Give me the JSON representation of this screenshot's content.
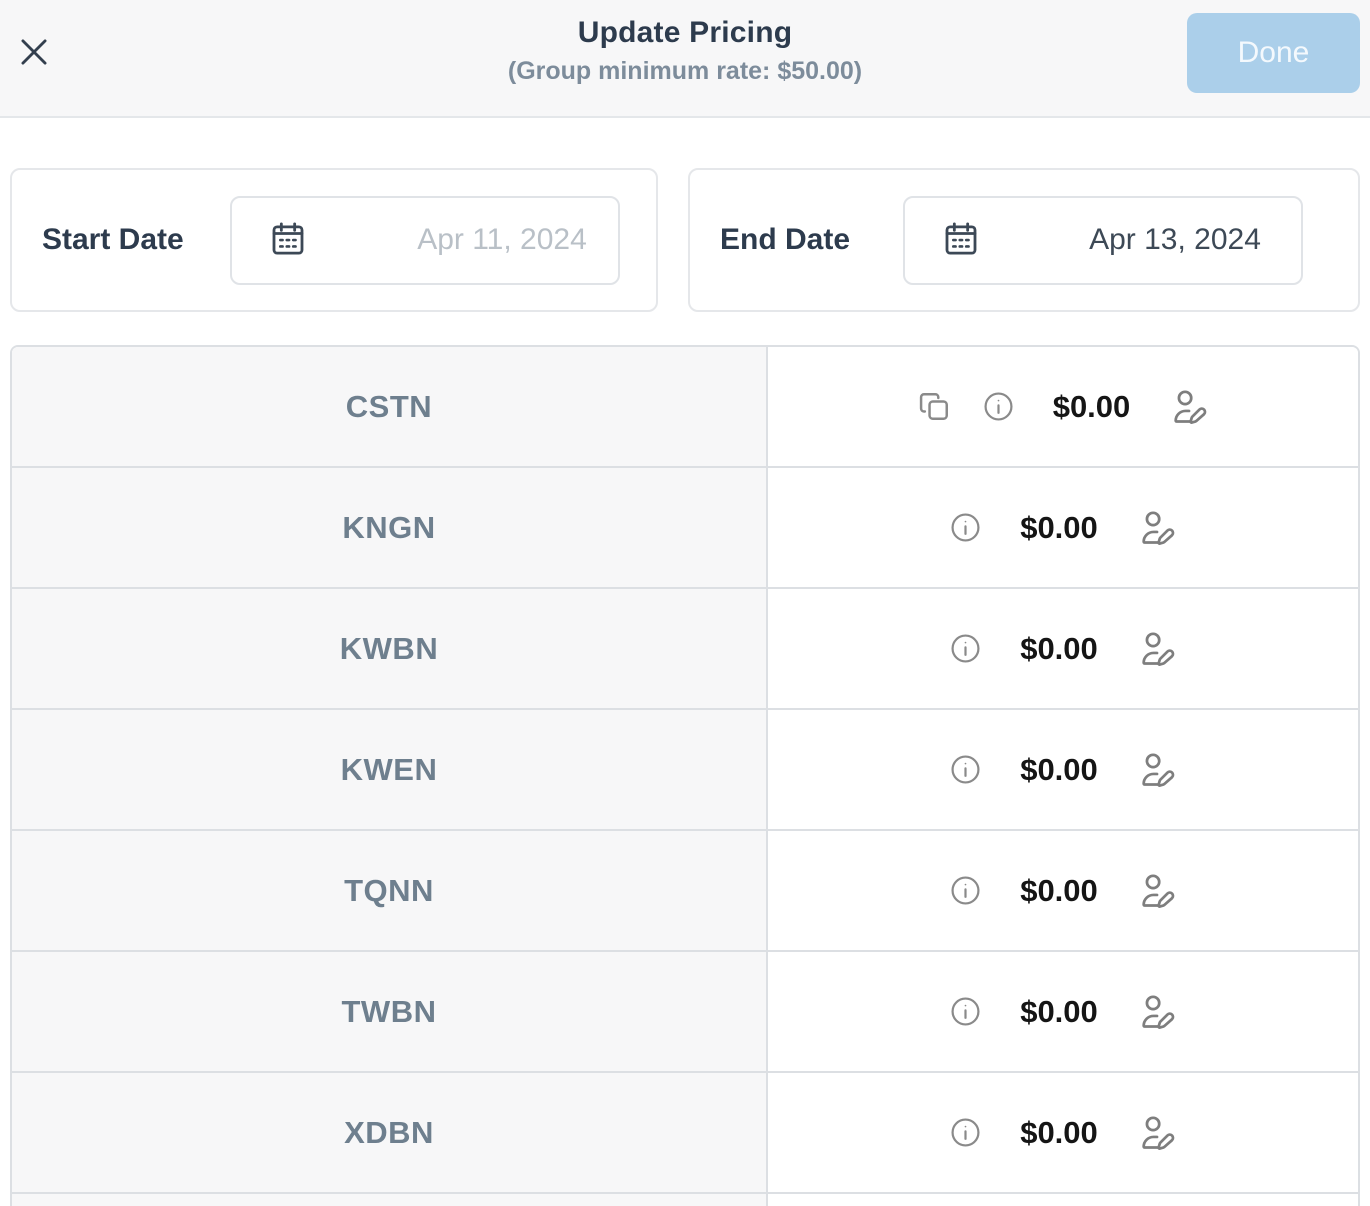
{
  "header": {
    "title": "Update Pricing",
    "subtitle": "(Group minimum rate: $50.00)",
    "done_label": "Done",
    "close_icon": "x-icon"
  },
  "dates": {
    "start": {
      "label": "Start Date",
      "placeholder": "Apr 11, 2024",
      "value": ""
    },
    "end": {
      "label": "End Date",
      "value": "Apr 13, 2024"
    }
  },
  "table": {
    "rows": [
      {
        "code": "CSTN",
        "price": "$0.00",
        "has_copy": true
      },
      {
        "code": "KNGN",
        "price": "$0.00",
        "has_copy": false
      },
      {
        "code": "KWBN",
        "price": "$0.00",
        "has_copy": false
      },
      {
        "code": "KWEN",
        "price": "$0.00",
        "has_copy": false
      },
      {
        "code": "TQNN",
        "price": "$0.00",
        "has_copy": false
      },
      {
        "code": "TWBN",
        "price": "$0.00",
        "has_copy": false
      },
      {
        "code": "XDBN",
        "price": "$0.00",
        "has_copy": false
      }
    ]
  },
  "icons": {
    "close": "x-icon",
    "calendar": "calendar-icon",
    "copy": "copy-icon",
    "info": "info-icon",
    "edit": "user-edit-icon"
  },
  "colors": {
    "done-bg": "#abcfea",
    "title-color": "#2d3b4d",
    "subtitle-color": "#7d8c9b",
    "code-color": "#6e7f8e",
    "icon-gray": "#8a8a8a",
    "table-border": "#dcdfe3",
    "row-left-bg": "#f7f7f8",
    "header-bg": "#f7f7f8"
  }
}
